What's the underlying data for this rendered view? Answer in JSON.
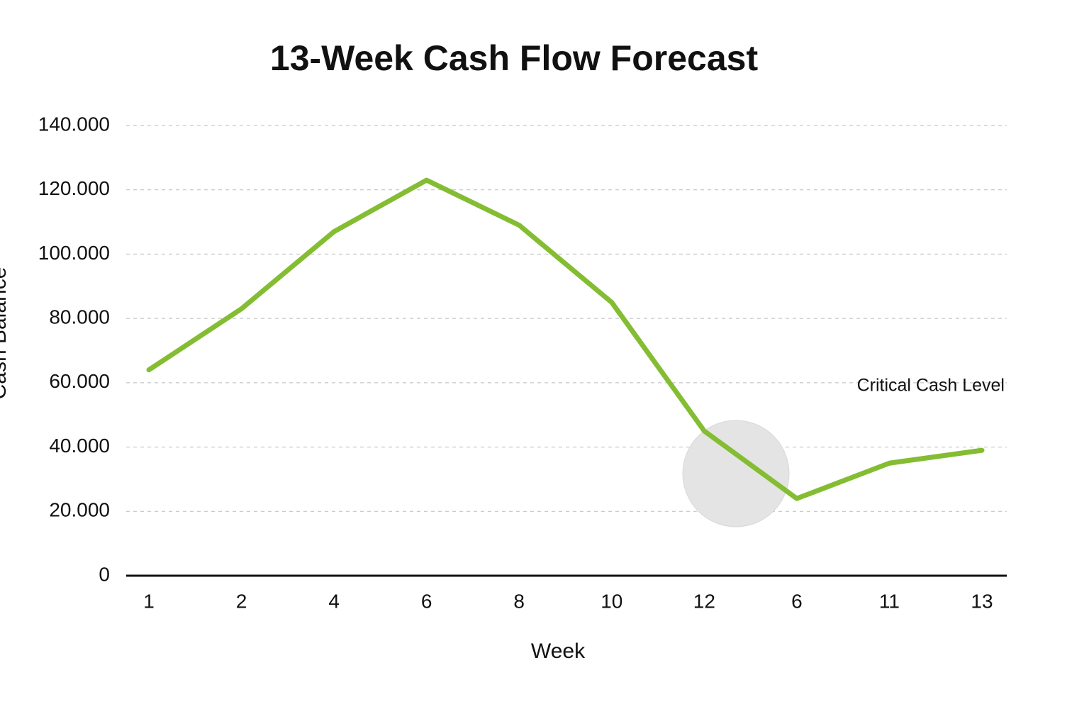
{
  "chart_data": {
    "type": "line",
    "title": "13-Week Cash Flow Forecast",
    "x_label": "Week",
    "y_label": "Cash Balance",
    "annotation": "Critical Cash Level",
    "categories": [
      "1",
      "2",
      "4",
      "6",
      "8",
      "10",
      "12",
      "6",
      "11",
      "13"
    ],
    "values": [
      64000,
      83000,
      107000,
      123000,
      109000,
      85000,
      45000,
      24000,
      35000,
      39000
    ],
    "color": "#84bd32",
    "ylim": [
      0,
      140000
    ],
    "yticks": [
      0,
      {
        "value": 20000,
        "label": "20.000"
      },
      {
        "value": 40000,
        "label": "40.000"
      },
      {
        "value": 60000,
        "label": "60.000"
      },
      {
        "value": 80000,
        "label": "80.000"
      },
      {
        "value": 100000,
        "label": "100.000"
      },
      {
        "value": 120000,
        "label": "120.000"
      },
      {
        "value": 140000,
        "label": "140.000"
      }
    ],
    "grid": true
  }
}
